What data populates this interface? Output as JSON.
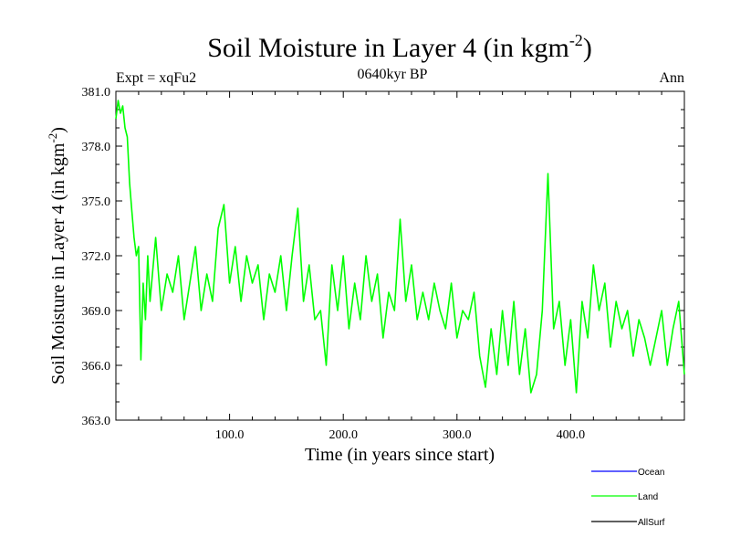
{
  "chart_data": {
    "type": "line",
    "title": "Soil Moisture in Layer 4 (in kgm",
    "title_sup": "-2",
    "title_close": ")",
    "subtitle": "0640kyr BP",
    "experiment": "Expt = xqFu2",
    "season": "Ann",
    "xlabel": "Time (in years since start)",
    "ylabel": "Soil Moisture in Layer 4 (in kgm",
    "ylabel_sup": "-2",
    "ylabel_close": ")",
    "xlim": [
      0,
      500
    ],
    "ylim": [
      363.0,
      381.0
    ],
    "x_ticks": [
      100,
      200,
      300,
      400
    ],
    "x_tick_labels": [
      "100.0",
      "200.0",
      "300.0",
      "400.0"
    ],
    "y_ticks": [
      363,
      366,
      369,
      372,
      375,
      378,
      381
    ],
    "y_tick_labels": [
      "363.0",
      "366.0",
      "369.0",
      "372.0",
      "375.0",
      "378.0",
      "381.0"
    ],
    "legend_position": "bottom-right, below plot",
    "series": [
      {
        "name": "Ocean",
        "color": "#0000ff",
        "values": []
      },
      {
        "name": "Land",
        "color": "#00ff00",
        "x": [
          0,
          2,
          4,
          6,
          8,
          10,
          12,
          14,
          16,
          18,
          20,
          22,
          24,
          26,
          28,
          30,
          35,
          40,
          45,
          50,
          55,
          60,
          65,
          70,
          75,
          80,
          85,
          90,
          95,
          100,
          105,
          110,
          115,
          120,
          125,
          130,
          135,
          140,
          145,
          150,
          155,
          160,
          165,
          170,
          175,
          180,
          185,
          190,
          195,
          200,
          205,
          210,
          215,
          220,
          225,
          230,
          235,
          240,
          245,
          250,
          255,
          260,
          265,
          270,
          275,
          280,
          285,
          290,
          295,
          300,
          305,
          310,
          315,
          320,
          325,
          330,
          335,
          340,
          345,
          350,
          355,
          360,
          365,
          370,
          375,
          380,
          385,
          390,
          395,
          400,
          405,
          410,
          415,
          420,
          425,
          430,
          435,
          440,
          445,
          450,
          455,
          460,
          465,
          470,
          475,
          480,
          485,
          490,
          495,
          500
        ],
        "values": [
          379.5,
          380.5,
          379.8,
          380.2,
          379.0,
          378.5,
          376.0,
          374.5,
          373.0,
          372.0,
          372.5,
          366.3,
          370.5,
          368.5,
          372.0,
          369.5,
          373.0,
          369.0,
          371.0,
          370.0,
          372.0,
          368.5,
          370.5,
          372.5,
          369.0,
          371.0,
          369.5,
          373.5,
          374.8,
          370.5,
          372.5,
          369.5,
          372.0,
          370.5,
          371.5,
          368.5,
          371.0,
          370.0,
          372.0,
          369.0,
          372.0,
          374.6,
          369.5,
          371.5,
          368.5,
          369.0,
          366.0,
          371.5,
          369.0,
          372.0,
          368.0,
          370.5,
          368.5,
          372.0,
          369.5,
          371.0,
          367.5,
          370.0,
          369.0,
          374.0,
          369.5,
          371.5,
          368.5,
          370.0,
          368.5,
          370.5,
          369.0,
          368.0,
          370.5,
          367.5,
          369.0,
          368.5,
          370.0,
          366.5,
          364.8,
          368.0,
          365.5,
          369.0,
          366.0,
          369.5,
          365.5,
          368.0,
          364.5,
          365.5,
          369.0,
          376.5,
          368.0,
          369.5,
          366.0,
          368.5,
          364.5,
          369.5,
          367.5,
          371.5,
          369.0,
          370.5,
          367.0,
          369.5,
          368.0,
          369.0,
          366.5,
          368.5,
          367.5,
          366.0,
          367.5,
          369.0,
          366.0,
          368.0,
          369.5,
          365.5
        ]
      },
      {
        "name": "AllSurf",
        "color": "#000000",
        "values": []
      }
    ]
  }
}
